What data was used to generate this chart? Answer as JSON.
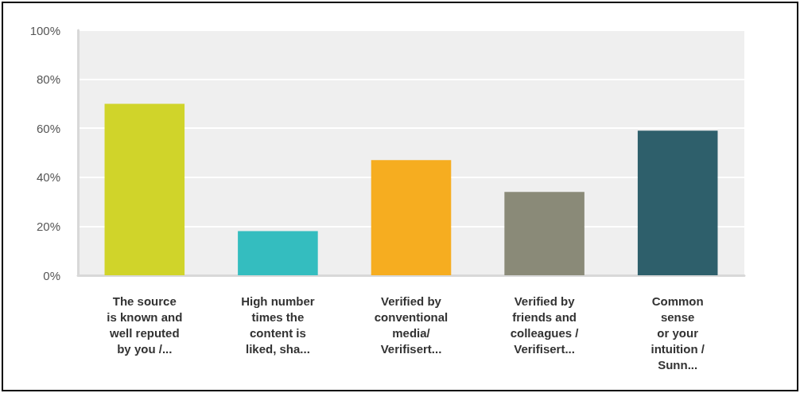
{
  "chart_data": {
    "type": "bar",
    "categories": [
      "The source\nis known and\nwell reputed\nby you /...",
      "High number\ntimes the\ncontent is\nliked, sha...",
      "Verified by\nconventional\nmedia/\nVerifisert...",
      "Verified by\nfriends and\ncolleagues /\nVerifisert...",
      "Common\nsense\nor your\nintuition /\nSunn..."
    ],
    "values": [
      70,
      18,
      47,
      34,
      59
    ],
    "colors": [
      "#d0d42a",
      "#34bdbf",
      "#f6ad20",
      "#8a8a78",
      "#2e5f6b"
    ],
    "ylim": [
      0,
      100
    ],
    "yticks": [
      {
        "value": 0,
        "label": "0%"
      },
      {
        "value": 20,
        "label": "20%"
      },
      {
        "value": 40,
        "label": "40%"
      },
      {
        "value": 60,
        "label": "60%"
      },
      {
        "value": 80,
        "label": "80%"
      },
      {
        "value": 100,
        "label": "100%"
      }
    ],
    "grid": "y"
  }
}
